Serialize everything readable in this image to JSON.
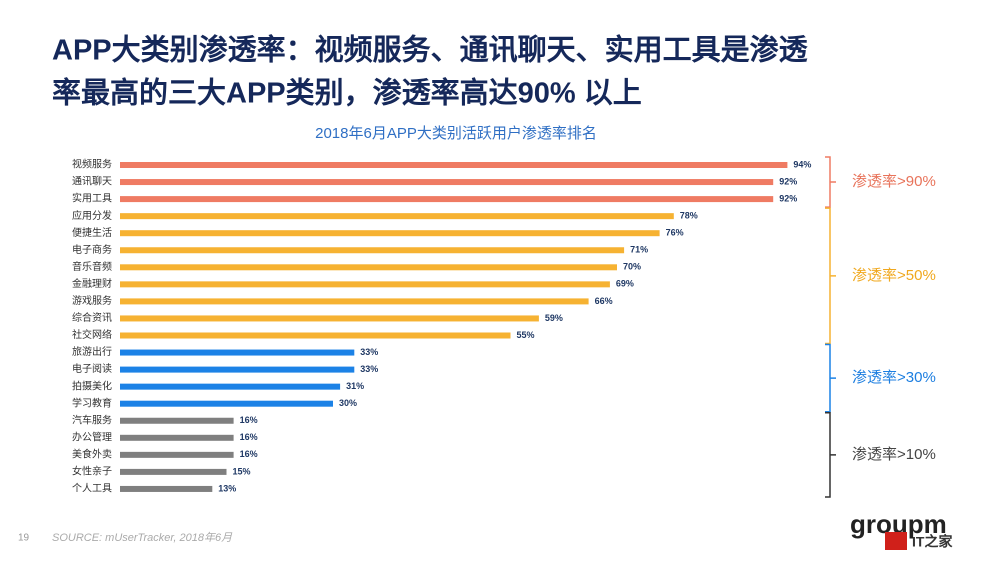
{
  "title_lines": [
    "APP大类别渗透率：视频服务、通讯聊天、实用工具是渗透",
    "率最高的三大APP类别，渗透率高达90% 以上"
  ],
  "chart_data": {
    "type": "bar",
    "title": "2018年6月APP大类别活跃用户渗透率排名",
    "xlim": [
      0,
      100
    ],
    "groups": [
      {
        "label": "渗透率>90%",
        "color": "#ef7b63",
        "label_color": "#e8735a",
        "categories": [
          "视频服务",
          "通讯聊天",
          "实用工具"
        ],
        "values": [
          94,
          92,
          92
        ],
        "value_labels": [
          "94%",
          "92%",
          "92%"
        ]
      },
      {
        "label": "渗透率>50%",
        "color": "#f6b232",
        "label_color": "#f0a81e",
        "categories": [
          "应用分发",
          "便捷生活",
          "电子商务",
          "音乐音频",
          "金融理财",
          "游戏服务",
          "综合资讯",
          "社交网络"
        ],
        "values": [
          78,
          76,
          71,
          70,
          69,
          66,
          59,
          55
        ],
        "value_labels": [
          "78%",
          "76%",
          "71%",
          "70%",
          "69%",
          "66%",
          "59%",
          "55%"
        ]
      },
      {
        "label": "渗透率>30%",
        "color": "#1c82e6",
        "label_color": "#1c7ee0",
        "categories": [
          "旅游出行",
          "电子阅读",
          "拍摄美化",
          "学习教育"
        ],
        "values": [
          33,
          33,
          31,
          30
        ],
        "value_labels": [
          "33%",
          "33%",
          "31%",
          "30%"
        ]
      },
      {
        "label": "渗透率>10%",
        "color": "#7f7f7f",
        "label_color": "#444444",
        "categories": [
          "汽车服务",
          "办公管理",
          "美食外卖",
          "女性亲子",
          "个人工具"
        ],
        "values": [
          16,
          16,
          16,
          15,
          13
        ],
        "value_labels": [
          "16%",
          "16%",
          "16%",
          "15%",
          "13%"
        ]
      }
    ]
  },
  "page_number": "19",
  "source": "SOURCE: mUserTracker, 2018年6月",
  "logo": "groupm",
  "watermark": "IT之家"
}
